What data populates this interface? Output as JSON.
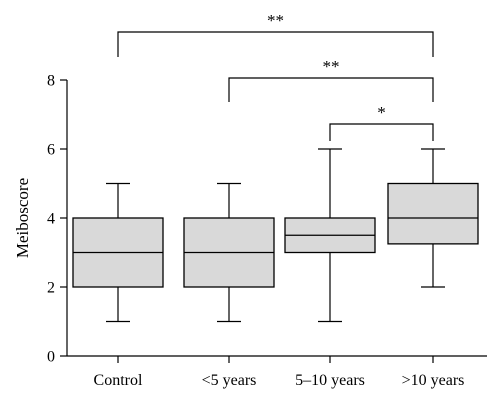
{
  "chart_data": {
    "type": "box",
    "ylabel": "Meiboscore",
    "ylim": [
      0,
      8
    ],
    "yticks": [
      0,
      2,
      4,
      6,
      8
    ],
    "categories": [
      "Control",
      "<5 years",
      "5–10 years",
      ">10 years"
    ],
    "boxes": [
      {
        "category": "Control",
        "min": 1,
        "q1": 2,
        "median": 3,
        "q3": 4,
        "max": 5
      },
      {
        "category": "<5 years",
        "min": 1,
        "q1": 2,
        "median": 3,
        "q3": 4,
        "max": 5
      },
      {
        "category": "5–10 years",
        "min": 1,
        "q1": 3,
        "median": 3.5,
        "q3": 4,
        "max": 6
      },
      {
        "category": ">10 years",
        "min": 2,
        "q1": 3.25,
        "median": 4,
        "q3": 5,
        "max": 6
      }
    ],
    "significance": [
      {
        "from": "Control",
        "to": ">10 years",
        "label": "**"
      },
      {
        "from": "<5 years",
        "to": ">10 years",
        "label": "**"
      },
      {
        "from": "5–10 years",
        "to": ">10 years",
        "label": "*"
      }
    ],
    "box_fill": "#d9d9d9"
  }
}
